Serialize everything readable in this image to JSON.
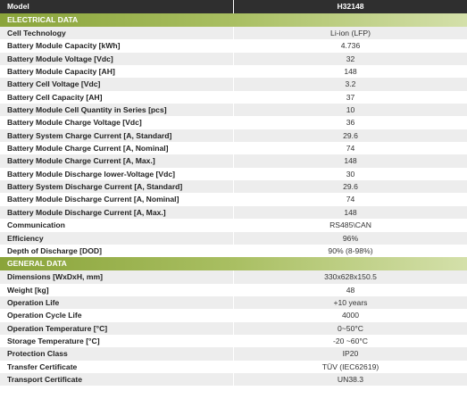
{
  "header": {
    "label": "Model",
    "value": "H32148"
  },
  "sections": [
    {
      "title": "ELECTRICAL DATA",
      "rows": [
        [
          "Cell Technology",
          "Li-ion (LFP)"
        ],
        [
          "Battery Module Capacity [kWh]",
          "4.736"
        ],
        [
          "Battery Module Voltage [Vdc]",
          "32"
        ],
        [
          "Battery Module Capacity [AH]",
          "148"
        ],
        [
          "Battery Cell Voltage [Vdc]",
          "3.2"
        ],
        [
          "Battery Cell Capacity  [AH]",
          "37"
        ],
        [
          "Battery Module Cell Quantity in Series [pcs]",
          "10"
        ],
        [
          "Battery Module Charge Voltage  [Vdc]",
          "36"
        ],
        [
          "Battery System Charge Current [A, Standard]",
          "29.6"
        ],
        [
          "Battery Module Charge Current [A, Nominal]",
          "74"
        ],
        [
          "Battery Module Charge Current [A, Max.]",
          "148"
        ],
        [
          "Battery Module Discharge lower-Voltage  [Vdc]",
          "30"
        ],
        [
          "Battery System Discharge Current [A, Standard]",
          "29.6"
        ],
        [
          "Battery Module Discharge Current [A, Nominal]",
          "74"
        ],
        [
          "Battery Module Discharge Current [A, Max.]",
          "148"
        ],
        [
          "Communication",
          "RS485\\CAN"
        ],
        [
          "Efficiency",
          "96%"
        ],
        [
          "Depth of Discharge [DOD]",
          "90% (8-98%)"
        ]
      ]
    },
    {
      "title": "GENERAL DATA",
      "rows": [
        [
          "Dimensions [WxDxH, mm]",
          "330x628x150.5"
        ],
        [
          "Weight [kg]",
          "48"
        ],
        [
          "Operation Life",
          "+10 years"
        ],
        [
          "Operation Cycle Life",
          "4000"
        ],
        [
          "Operation Temperature [°C]",
          "0~50°C"
        ],
        [
          "Storage Temperature [°C]",
          "-20 ~60°C"
        ],
        [
          "Protection Class",
          "IP20"
        ],
        [
          "Transfer Certificate",
          "TÜV (IEC62619)"
        ],
        [
          "Transport Certificate",
          "UN38.3"
        ]
      ]
    }
  ]
}
